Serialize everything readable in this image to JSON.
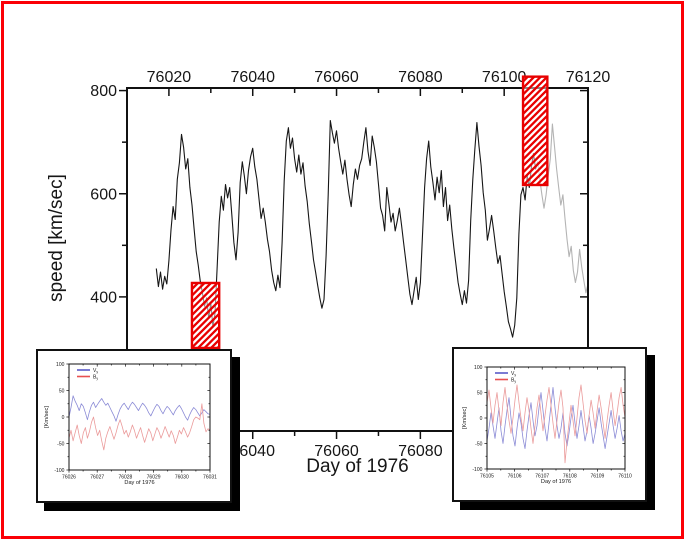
{
  "page": {
    "background": "#ffffff",
    "border_color": "#fb0006",
    "highlight_color": "#e80000",
    "title": ""
  },
  "chart_data": [
    {
      "id": "main-chart",
      "type": "line",
      "title": "",
      "xlabel": "Day of 1976",
      "ylabel": "speed [km/sec]",
      "xlim": [
        76010,
        76120
      ],
      "ylim": [
        140,
        805
      ],
      "grid": false,
      "xticks_major": [
        76020,
        76040,
        76060,
        76080,
        76100,
        76120
      ],
      "xticks_minor": [
        76030,
        76050,
        76070,
        76090,
        76110
      ],
      "x_tick_labels": [
        "76020",
        "76040",
        "76060",
        "76080",
        "76100",
        "76120"
      ],
      "yticks_major": [
        400,
        600,
        800
      ],
      "yticks_minor": [
        500,
        700
      ],
      "y_tick_labels": [
        "400",
        "600",
        "800"
      ],
      "series": [
        {
          "name": "solar-wind-speed",
          "color": "#161616",
          "x0": 76017,
          "dx": 0.5,
          "values": [
            455,
            420,
            448,
            415,
            440,
            425,
            470,
            530,
            575,
            550,
            628,
            660,
            715,
            690,
            648,
            668,
            612,
            578,
            532,
            488,
            462,
            430,
            408,
            382,
            398,
            358,
            388,
            342,
            368,
            455,
            545,
            595,
            568,
            618,
            592,
            612,
            560,
            505,
            472,
            525,
            622,
            662,
            635,
            600,
            645,
            672,
            688,
            652,
            628,
            590,
            552,
            572,
            545,
            512,
            488,
            452,
            428,
            412,
            442,
            418,
            505,
            625,
            702,
            728,
            688,
            708,
            668,
            642,
            675,
            638,
            660,
            615,
            585,
            542,
            508,
            472,
            448,
            422,
            398,
            378,
            395,
            480,
            598,
            742,
            718,
            698,
            722,
            688,
            662,
            638,
            665,
            628,
            598,
            575,
            618,
            648,
            628,
            655,
            668,
            700,
            728,
            682,
            655,
            712,
            690,
            662,
            618,
            572,
            558,
            528,
            612,
            580,
            545,
            562,
            528,
            548,
            572,
            540,
            505,
            472,
            438,
            405,
            385,
            412,
            438,
            395,
            428,
            520,
            612,
            668,
            702,
            652,
            622,
            588,
            632,
            602,
            645,
            575,
            612,
            548,
            578,
            532,
            495,
            462,
            428,
            405,
            385,
            412,
            388,
            432,
            548,
            628,
            685,
            738,
            692,
            655,
            602,
            568,
            510,
            532,
            558,
            528,
            495,
            465,
            480,
            445,
            410,
            382,
            352,
            338,
            322,
            345,
            398,
            522,
            598,
            612,
            588,
            635,
            612,
            652,
            678,
            648,
            662
          ]
        },
        {
          "name": "solar-wind-speed-faded",
          "color": "#b4b4b4",
          "x0": 76108,
          "dx": 0.5,
          "values": [
            662,
            628,
            598,
            572,
            598,
            635,
            668,
            735,
            692,
            648,
            612,
            578,
            598,
            552,
            512,
            478,
            498,
            452,
            428,
            448,
            492,
            458,
            432,
            408,
            425
          ]
        }
      ],
      "highlights": [
        {
          "name": "slow-wind-interval",
          "x_range": [
            76025.5,
            76032.0
          ],
          "y_range": [
            301,
            427
          ],
          "color": "#e80000"
        },
        {
          "name": "fast-wind-interval",
          "x_range": [
            76104.5,
            76110.3
          ],
          "y_range": [
            617,
            827
          ],
          "color": "#e80000"
        }
      ]
    },
    {
      "id": "inset-left-chart",
      "type": "line",
      "title": "",
      "xlabel": "Day of 1976",
      "ylabel": "[Km/sec]",
      "xlim": [
        76026,
        76031
      ],
      "ylim": [
        -100,
        100
      ],
      "grid": false,
      "xticks_major": [
        76026,
        76027,
        76028,
        76029,
        76030,
        76031
      ],
      "xticks_minor": [
        76026.5,
        76027.5,
        76028.5,
        76029.5,
        76030.5
      ],
      "x_tick_labels": [
        "76026",
        "76027",
        "76028",
        "76029",
        "76030",
        "76031"
      ],
      "yticks_major": [
        -100,
        -50,
        0,
        50,
        100
      ],
      "yticks_minor": [
        -75,
        -25,
        25,
        75
      ],
      "y_tick_labels": [
        "-100",
        "-50",
        "0",
        "50",
        "100"
      ],
      "legend": [
        {
          "label": "V",
          "sub": "y",
          "color": "#5a5ac8"
        },
        {
          "label": "B",
          "sub": "y",
          "color": "#e85050"
        }
      ],
      "series": [
        {
          "name": "velocity-fluctuation",
          "color": "#8b8bd6",
          "x0": 76026,
          "dx": 0.0725,
          "values": [
            0,
            18,
            40,
            30,
            22,
            12,
            25,
            20,
            8,
            -5,
            10,
            22,
            28,
            18,
            24,
            30,
            35,
            28,
            22,
            26,
            18,
            10,
            2,
            -8,
            5,
            15,
            22,
            26,
            20,
            14,
            22,
            28,
            24,
            18,
            12,
            20,
            26,
            22,
            16,
            8,
            2,
            10,
            18,
            24,
            20,
            12,
            6,
            14,
            20,
            16,
            10,
            4,
            12,
            18,
            22,
            16,
            8,
            0,
            -6,
            4,
            12,
            18,
            14,
            8,
            2,
            8,
            14,
            10,
            6,
            5
          ]
        },
        {
          "name": "magnetic-fluctuation",
          "color": "#eb9b9b",
          "x0": 76026,
          "dx": 0.0725,
          "values": [
            -40,
            -25,
            -45,
            -30,
            -15,
            -35,
            -50,
            -30,
            -20,
            -40,
            -28,
            -10,
            0,
            -20,
            -35,
            -25,
            -45,
            -62,
            -40,
            -28,
            -18,
            -30,
            -42,
            -30,
            -15,
            -5,
            -18,
            -32,
            -25,
            -38,
            -28,
            -15,
            -25,
            -40,
            -30,
            -20,
            -35,
            -48,
            -35,
            -22,
            -30,
            -45,
            -32,
            -20,
            -28,
            -40,
            -30,
            -18,
            -28,
            -38,
            -26,
            -35,
            -50,
            -38,
            -25,
            -32,
            -20,
            -28,
            -38,
            -30,
            -18,
            -5,
            0,
            -2,
            -5,
            25,
            -12,
            -28,
            -22,
            -25
          ]
        }
      ],
      "highlights": []
    },
    {
      "id": "inset-right-chart",
      "type": "line",
      "title": "",
      "xlabel": "Day of 1976",
      "ylabel": "[Km/sec]",
      "xlim": [
        76105,
        76110
      ],
      "ylim": [
        -100,
        100
      ],
      "grid": false,
      "xticks_major": [
        76105,
        76106,
        76107,
        76108,
        76109,
        76110
      ],
      "xticks_minor": [
        76105.5,
        76106.5,
        76107.5,
        76108.5,
        76109.5
      ],
      "x_tick_labels": [
        "76105",
        "76106",
        "76107",
        "76108",
        "76109",
        "76110"
      ],
      "yticks_major": [
        -100,
        -50,
        0,
        50,
        100
      ],
      "yticks_minor": [
        -75,
        -25,
        25,
        75
      ],
      "y_tick_labels": [
        "-100",
        "-50",
        "0",
        "50",
        "100"
      ],
      "legend": [
        {
          "label": "V",
          "sub": "y",
          "color": "#5a5ac8"
        },
        {
          "label": "B",
          "sub": "y",
          "color": "#e85050"
        }
      ],
      "series": [
        {
          "name": "velocity-fluctuation",
          "color": "#8b8bd6",
          "x0": 76105,
          "dx": 0.0725,
          "values": [
            -45,
            -20,
            10,
            -15,
            -40,
            -10,
            20,
            -25,
            -50,
            -15,
            15,
            40,
            0,
            -35,
            -55,
            -20,
            10,
            -10,
            -40,
            -60,
            -25,
            5,
            30,
            -5,
            -35,
            -15,
            20,
            50,
            15,
            -20,
            -45,
            -10,
            25,
            60,
            20,
            -15,
            -40,
            -20,
            10,
            -30,
            -55,
            -30,
            0,
            25,
            -10,
            -40,
            -15,
            15,
            -15,
            -45,
            -25,
            5,
            -20,
            -50,
            -30,
            -5,
            20,
            -10,
            -35,
            -60,
            -35,
            -10,
            15,
            -15,
            -40,
            -20,
            5,
            -25,
            -45,
            -30
          ]
        },
        {
          "name": "magnetic-fluctuation",
          "color": "#eb9b9b",
          "x0": 76105,
          "dx": 0.0725,
          "values": [
            30,
            55,
            20,
            -10,
            25,
            50,
            15,
            -15,
            30,
            60,
            25,
            -5,
            -30,
            0,
            35,
            65,
            30,
            0,
            -25,
            10,
            40,
            15,
            -20,
            -50,
            -15,
            20,
            45,
            10,
            -25,
            5,
            35,
            60,
            25,
            -10,
            -40,
            -5,
            30,
            55,
            20,
            -88,
            -45,
            -10,
            25,
            -5,
            -35,
            0,
            40,
            65,
            30,
            -5,
            -30,
            5,
            35,
            10,
            -20,
            15,
            45,
            20,
            -10,
            -40,
            -5,
            25,
            50,
            15,
            -15,
            10,
            40,
            60,
            25,
            0
          ]
        }
      ],
      "highlights": []
    }
  ]
}
